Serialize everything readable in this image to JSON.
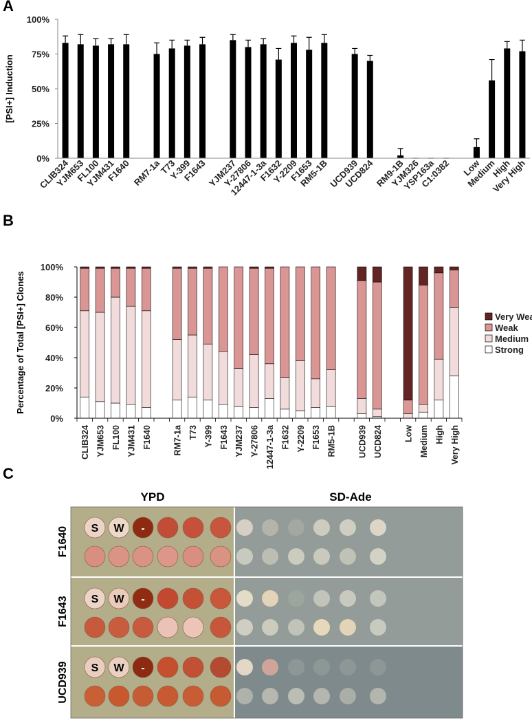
{
  "chart_data": [
    {
      "type": "bar",
      "panel": "A",
      "y_label": "[PSI+] Induction",
      "color": "#000000",
      "categories": [
        "CLIB324",
        "YJM653",
        "FL100",
        "YJM431",
        "F1640",
        null,
        "RM7-1a",
        "T73",
        "Y-399",
        "F1643",
        null,
        "YJM237",
        "Y-27806",
        "12447-1-3a",
        "F1632",
        "Y-2209",
        "F1653",
        "RM5-1B",
        null,
        "UCD939",
        "UCD824",
        null,
        "RM9-1B",
        "YJM326",
        "YSP163a",
        "C1:0382",
        null,
        "Low",
        "Medium",
        "High",
        "Very High"
      ],
      "values": [
        83,
        82,
        81,
        82,
        82,
        null,
        75,
        79,
        81,
        82,
        null,
        85,
        80,
        82,
        71,
        83,
        78,
        83,
        null,
        75,
        70,
        null,
        2,
        0,
        0,
        0,
        null,
        8,
        56,
        79,
        77
      ],
      "errors": [
        5,
        7,
        5,
        4,
        7,
        null,
        8,
        6,
        4,
        5,
        null,
        4,
        5,
        4,
        8,
        5,
        9,
        6,
        null,
        4,
        4,
        null,
        5,
        0,
        0,
        0,
        null,
        6,
        15,
        5,
        8
      ],
      "ylim": [
        0,
        100
      ],
      "yticks": [
        {
          "value": 0,
          "label": "0%"
        },
        {
          "value": 25,
          "label": "25%"
        },
        {
          "value": 50,
          "label": "50%"
        },
        {
          "value": 75,
          "label": "75%"
        },
        {
          "value": 100,
          "label": "100%"
        }
      ]
    },
    {
      "type": "stacked_bar",
      "panel": "B",
      "y_label": "Percentage of Total [PSI+] Clones",
      "categories": [
        "CLIB324",
        "YJM653",
        "FL100",
        "YJM431",
        "F1640",
        null,
        "RM7-1a",
        "T73",
        "Y-399",
        "F1643",
        "YJM237",
        "Y-27806",
        "12447-1-3a",
        "F1632",
        "Y-2209",
        "F1653",
        "RM5-1B",
        null,
        "UCD939",
        "UCD824",
        null,
        "Low",
        "Medium",
        "High",
        "Very High"
      ],
      "series": [
        {
          "name": "Strong",
          "color": "#ffffff",
          "values": [
            14,
            11,
            10,
            9,
            7,
            null,
            12,
            14,
            12,
            9,
            8,
            7,
            13,
            6,
            5,
            7,
            8,
            null,
            3,
            1,
            null,
            0,
            4,
            12,
            28
          ]
        },
        {
          "name": "Medium",
          "color": "#f2dcdb",
          "values": [
            57,
            59,
            70,
            65,
            64,
            null,
            40,
            41,
            37,
            35,
            25,
            35,
            23,
            21,
            33,
            19,
            24,
            null,
            10,
            5,
            null,
            3,
            5,
            27,
            45
          ]
        },
        {
          "name": "Weak",
          "color": "#d99694",
          "values": [
            28,
            29,
            19,
            25,
            28,
            null,
            47,
            44,
            50,
            56,
            67,
            57,
            63,
            73,
            62,
            74,
            68,
            null,
            78,
            84,
            null,
            9,
            79,
            57,
            25
          ]
        },
        {
          "name": "Very Weak",
          "color": "#632523",
          "values": [
            1,
            1,
            1,
            1,
            1,
            null,
            1,
            1,
            1,
            0,
            0,
            1,
            1,
            0,
            0,
            0,
            0,
            null,
            9,
            10,
            null,
            88,
            12,
            4,
            2
          ]
        }
      ],
      "ylim": [
        0,
        100
      ],
      "yticks": [
        {
          "value": 0,
          "label": "0%"
        },
        {
          "value": 20,
          "label": "20%"
        },
        {
          "value": 40,
          "label": "40%"
        },
        {
          "value": 60,
          "label": "60%"
        },
        {
          "value": 80,
          "label": "80%"
        },
        {
          "value": 100,
          "label": "100%"
        }
      ],
      "legend": "right"
    }
  ],
  "photo": {
    "panel": "C",
    "columns": [
      "YPD",
      "SD-Ade"
    ],
    "rows": [
      "F1640",
      "F1643",
      "UCD939"
    ],
    "spot_labels": [
      "S",
      "W",
      "-"
    ]
  }
}
